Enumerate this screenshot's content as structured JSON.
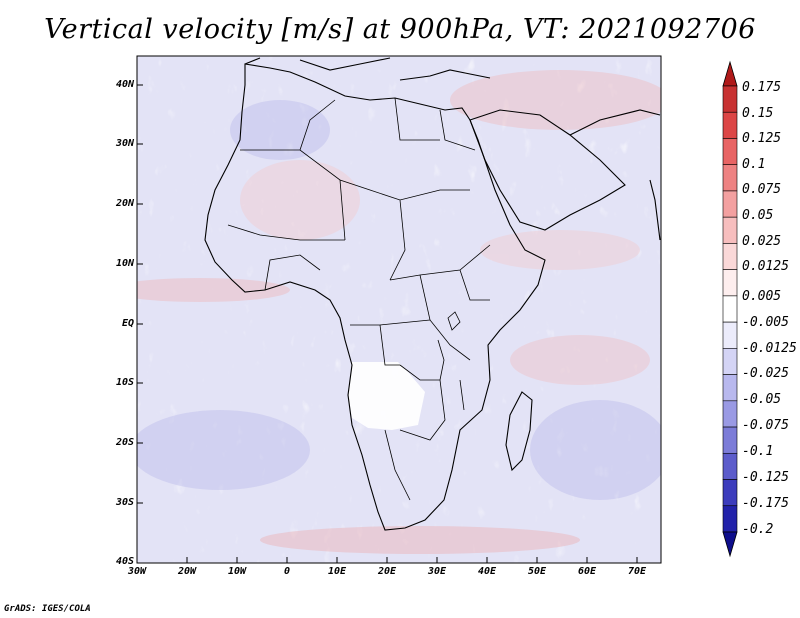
{
  "title": "Vertical velocity [m/s] at 900hPa, VT: 2021092706",
  "map": {
    "field": "Vertical velocity",
    "units": "m/s",
    "level": "900hPa",
    "valid_time": "2021092706",
    "lon_range": [
      -30,
      75
    ],
    "lat_range": [
      -40,
      45
    ],
    "lat_labels": [
      "40N",
      "30N",
      "20N",
      "10N",
      "EQ",
      "10S",
      "20S",
      "30S",
      "40S"
    ],
    "lon_labels": [
      "30W",
      "20W",
      "10W",
      "0",
      "10E",
      "20E",
      "30E",
      "40E",
      "50E",
      "60E",
      "70E"
    ]
  },
  "colorbar": {
    "labels": [
      "0.175",
      "0.15",
      "0.125",
      "0.1",
      "0.075",
      "0.05",
      "0.025",
      "0.0125",
      "0.005",
      "-0.005",
      "-0.0125",
      "-0.025",
      "-0.05",
      "-0.075",
      "-0.1",
      "-0.125",
      "-0.175",
      "-0.2"
    ],
    "colors": [
      "#b01a1a",
      "#c83232",
      "#dc4646",
      "#e86464",
      "#ee8282",
      "#f3a0a0",
      "#f7bebe",
      "#fad8d8",
      "#fdeeee",
      "#ffffff",
      "#ececfb",
      "#d4d4f5",
      "#b8b8ee",
      "#9a9ae4",
      "#7c7cd8",
      "#5c5ccb",
      "#3c3cbc",
      "#2222aa",
      "#0e0e8c"
    ]
  },
  "credit": "GrADS: IGES/COLA"
}
